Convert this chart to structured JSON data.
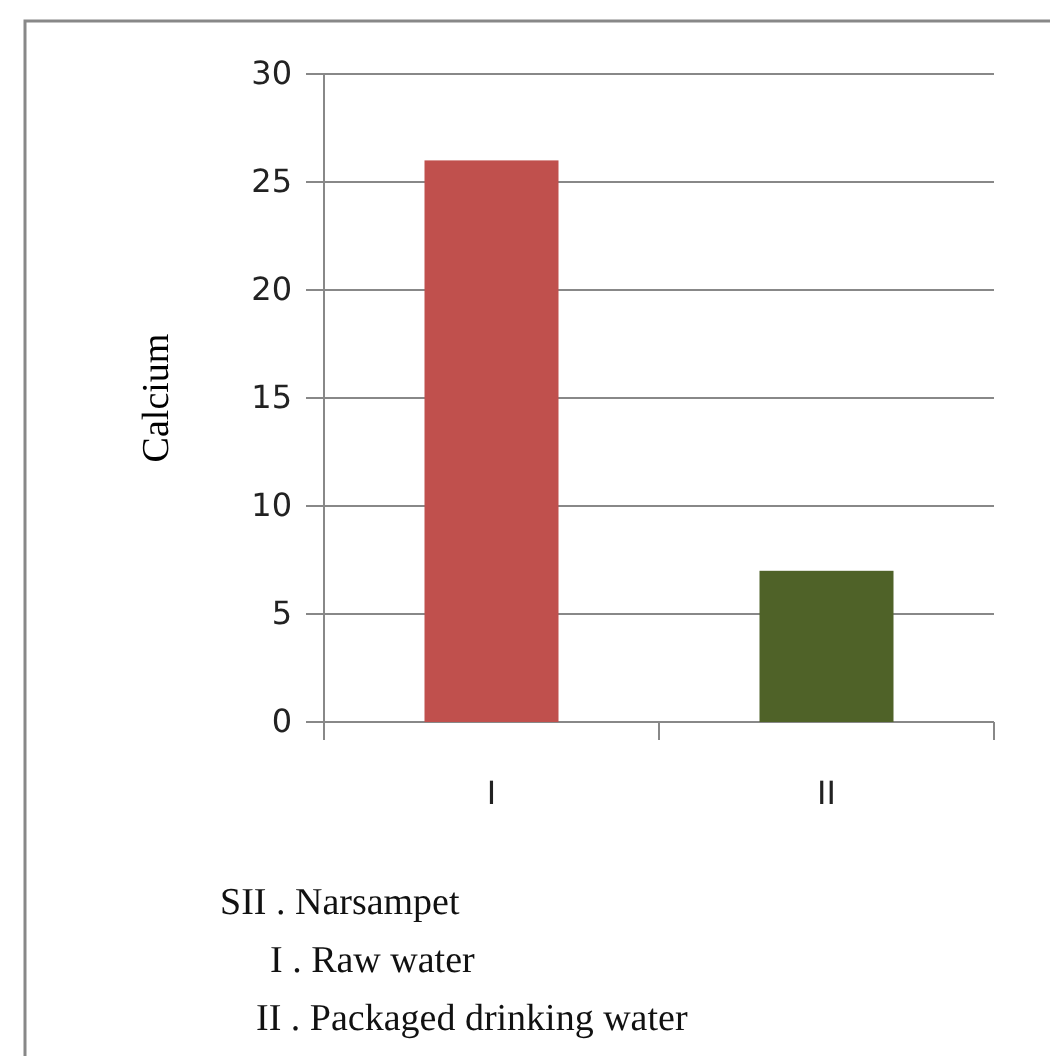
{
  "chart_data": {
    "type": "bar",
    "categories": [
      "I",
      "II"
    ],
    "colors": [
      "#c0504d",
      "#4f6228"
    ],
    "values": [
      26,
      7
    ],
    "ylabel": "Calcium",
    "ylim": [
      0,
      30
    ],
    "yticks": [
      0,
      5,
      10,
      15,
      20,
      25,
      30
    ],
    "grid": "y",
    "annotations": [
      "SII . Narsampet",
      "I . Raw water",
      "II . Packaged drinking water"
    ]
  }
}
